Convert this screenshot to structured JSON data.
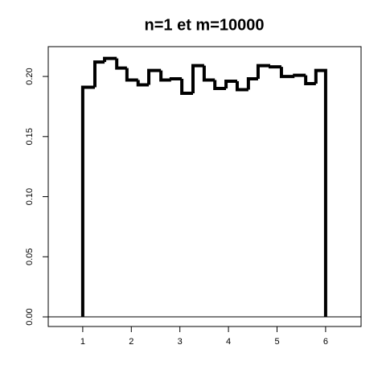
{
  "chart_data": {
    "type": "histogram",
    "title": "n=1 et m=10000",
    "bins": [
      1,
      1.25,
      1.45,
      1.7,
      1.91,
      2.14,
      2.36,
      2.61,
      2.82,
      3.04,
      3.27,
      3.5,
      3.72,
      3.95,
      4.18,
      4.41,
      4.61,
      4.86,
      5.09,
      5.36,
      5.59,
      5.8,
      6
    ],
    "values": [
      0.191,
      0.212,
      0.215,
      0.207,
      0.197,
      0.193,
      0.205,
      0.197,
      0.198,
      0.186,
      0.209,
      0.197,
      0.19,
      0.196,
      0.189,
      0.198,
      0.209,
      0.208,
      0.2,
      0.201,
      0.194,
      0.205
    ],
    "color": "#000000",
    "xlim": [
      0.29,
      6.73
    ],
    "xticks": [
      1,
      2,
      3,
      4,
      5,
      6
    ],
    "ylim": [
      -0.008,
      0.2248
    ],
    "yticks": [
      {
        "value": 0,
        "label": "0.00"
      },
      {
        "value": 0.05,
        "label": "0.05"
      },
      {
        "value": 0.1,
        "label": "0.10"
      },
      {
        "value": 0.15,
        "label": "0.15"
      },
      {
        "value": 0.2,
        "label": "0.20"
      }
    ]
  }
}
